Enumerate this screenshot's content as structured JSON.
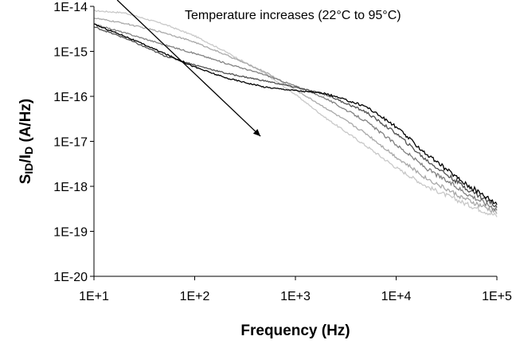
{
  "chart_data": {
    "type": "line",
    "xlabel": "Frequency (Hz)",
    "ylabel_main": "S",
    "ylabel_sub1": "ID",
    "ylabel_mid": "/I",
    "ylabel_sub2": "D",
    "ylabel_unit": " (A/Hz)",
    "x_scale": "log",
    "y_scale": "log",
    "xlim": [
      10,
      100000
    ],
    "ylim": [
      1e-20,
      1e-14
    ],
    "x_ticks": [
      "1E+1",
      "1E+2",
      "1E+3",
      "1E+4",
      "1E+5"
    ],
    "y_ticks": [
      "1E-20",
      "1E-19",
      "1E-18",
      "1E-17",
      "1E-16",
      "1E-15",
      "1E-14"
    ],
    "grid": false,
    "legend": "none",
    "annotation": {
      "text": "Temperature increases (22°C to 95°C)",
      "arrow_from": [
        17,
        2e-14
      ],
      "arrow_to": [
        450,
        1.3e-17
      ]
    },
    "series": [
      {
        "color": "#c8c8c8",
        "x": [
          10,
          20,
          50,
          100,
          200,
          500,
          1000,
          2000,
          5000,
          10000,
          20000,
          50000,
          100000
        ],
        "y": [
          8e-15,
          7.2e-15,
          4e-15,
          2.2e-15,
          1e-15,
          3.2e-16,
          1.1e-16,
          3.3e-17,
          8e-18,
          2.6e-18,
          1e-18,
          4e-19,
          2.2e-19
        ]
      },
      {
        "color": "#a8a8a8",
        "x": [
          10,
          20,
          50,
          100,
          200,
          500,
          1000,
          2000,
          5000,
          10000,
          20000,
          50000,
          100000
        ],
        "y": [
          5.5e-15,
          4.2e-15,
          2.6e-15,
          1.6e-15,
          8.5e-16,
          3.5e-16,
          1.4e-16,
          5.5e-17,
          1.5e-17,
          4.5e-18,
          1.5e-18,
          5e-19,
          2.6e-19
        ]
      },
      {
        "color": "#808080",
        "x": [
          10,
          20,
          50,
          100,
          200,
          500,
          1000,
          2000,
          5000,
          10000,
          20000,
          50000,
          100000
        ],
        "y": [
          4e-15,
          2.6e-15,
          1.4e-15,
          9e-16,
          5.5e-16,
          3e-16,
          1.7e-16,
          9e-17,
          2.8e-17,
          8.5e-18,
          2.5e-18,
          7e-19,
          3.1e-19
        ]
      },
      {
        "color": "#505050",
        "x": [
          10,
          20,
          50,
          100,
          200,
          500,
          1000,
          2000,
          5000,
          10000,
          20000,
          50000,
          100000
        ],
        "y": [
          3.5e-15,
          2e-15,
          8e-16,
          5e-16,
          3.3e-16,
          2.2e-16,
          1.6e-16,
          1.1e-16,
          4.5e-17,
          1.5e-17,
          3.8e-18,
          9e-19,
          3.6e-19
        ]
      },
      {
        "color": "#000000",
        "x": [
          10,
          20,
          50,
          100,
          200,
          500,
          1000,
          2000,
          5000,
          10000,
          20000,
          50000,
          100000
        ],
        "y": [
          4e-15,
          2.2e-15,
          9e-16,
          4.5e-16,
          2.6e-16,
          1.6e-16,
          1.35e-16,
          1.15e-16,
          6e-17,
          2.1e-17,
          5.2e-18,
          1.1e-18,
          4.2e-19
        ]
      }
    ]
  }
}
